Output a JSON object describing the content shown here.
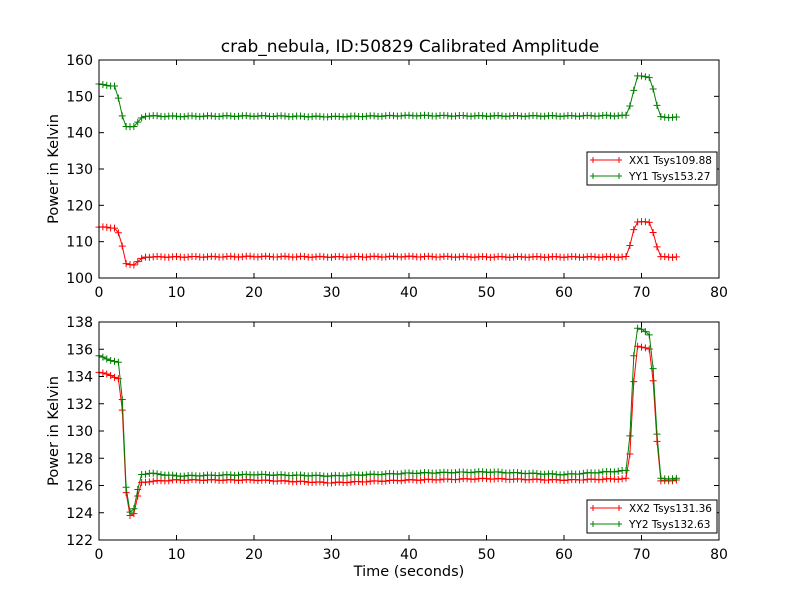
{
  "title": "crab_nebula, ID:50829 Calibrated Amplitude",
  "colors": {
    "xx": "#ff0000",
    "yy": "#008000"
  },
  "chart_data": [
    {
      "type": "line",
      "ylabel": "Power in Kelvin",
      "xlabel": "",
      "xlim": [
        0,
        80
      ],
      "ylim": [
        100,
        160
      ],
      "xticks": [
        0,
        10,
        20,
        30,
        40,
        50,
        60,
        70,
        80
      ],
      "yticks": [
        100,
        110,
        120,
        130,
        140,
        150,
        160
      ],
      "grid": false,
      "legend_position": "center-right",
      "series": [
        {
          "name": "XX1 Tsys109.88",
          "color": "#ff0000",
          "x": [
            0,
            2.2,
            2.8,
            3.4,
            4.6,
            5.4,
            6,
            10,
            20,
            30,
            40,
            50,
            60,
            68.2,
            68.9,
            69.5,
            71.2,
            71.8,
            72.4,
            74.5
          ],
          "y": [
            114,
            113.8,
            111,
            104,
            103.6,
            105.2,
            105.8,
            105.8,
            105.9,
            105.8,
            105.9,
            105.8,
            105.8,
            105.8,
            113,
            115.5,
            115.3,
            110,
            105.8,
            105.8
          ]
        },
        {
          "name": "YY1 Tsys153.27",
          "color": "#008000",
          "x": [
            0,
            2.2,
            2.8,
            3.4,
            4.6,
            5.4,
            6,
            10,
            20,
            30,
            40,
            50,
            60,
            68.2,
            68.9,
            69.5,
            71.2,
            71.8,
            72.4,
            74.5
          ],
          "y": [
            153.3,
            152.8,
            146,
            141.8,
            141.6,
            144,
            144.6,
            144.5,
            144.6,
            144.4,
            144.7,
            144.6,
            144.6,
            144.7,
            151,
            155.6,
            155.2,
            149,
            144.3,
            144.2
          ]
        }
      ]
    },
    {
      "type": "line",
      "ylabel": "Power in Kelvin",
      "xlabel": "Time (seconds)",
      "xlim": [
        0,
        80
      ],
      "ylim": [
        122,
        138
      ],
      "xticks": [
        0,
        10,
        20,
        30,
        40,
        50,
        60,
        70,
        80
      ],
      "yticks": [
        122,
        124,
        126,
        128,
        130,
        132,
        134,
        136,
        138
      ],
      "grid": false,
      "legend_position": "lower-right",
      "series": [
        {
          "name": "XX2 Tsys131.36",
          "color": "#ff0000",
          "x": [
            0,
            1.5,
            2.6,
            3.0,
            3.4,
            3.8,
            4.4,
            5.4,
            6.5,
            10,
            20,
            30,
            40,
            50,
            60,
            68.3,
            68.8,
            69.2,
            70.2,
            71.2,
            71.7,
            72.3,
            74.5
          ],
          "y": [
            134.3,
            134.1,
            133.8,
            131.5,
            126,
            123.9,
            123.7,
            126.2,
            126.3,
            126.4,
            126.4,
            126.2,
            126.4,
            126.5,
            126.4,
            126.5,
            131,
            136.3,
            136.1,
            136,
            132.2,
            126.3,
            126.4
          ]
        },
        {
          "name": "YY2 Tsys132.63",
          "color": "#008000",
          "x": [
            0,
            1.5,
            2.6,
            3.0,
            3.4,
            3.8,
            4.4,
            5.4,
            6.5,
            10,
            20,
            30,
            40,
            50,
            60,
            68.3,
            68.8,
            69.2,
            70.2,
            71.2,
            71.7,
            72.3,
            74.5
          ],
          "y": [
            135.5,
            135.2,
            135,
            132.3,
            126.5,
            124.1,
            124,
            126.8,
            126.9,
            126.7,
            126.8,
            126.7,
            126.9,
            127,
            126.8,
            127.1,
            133.5,
            137.6,
            137.4,
            137,
            133,
            126.5,
            126.5
          ]
        }
      ]
    }
  ]
}
